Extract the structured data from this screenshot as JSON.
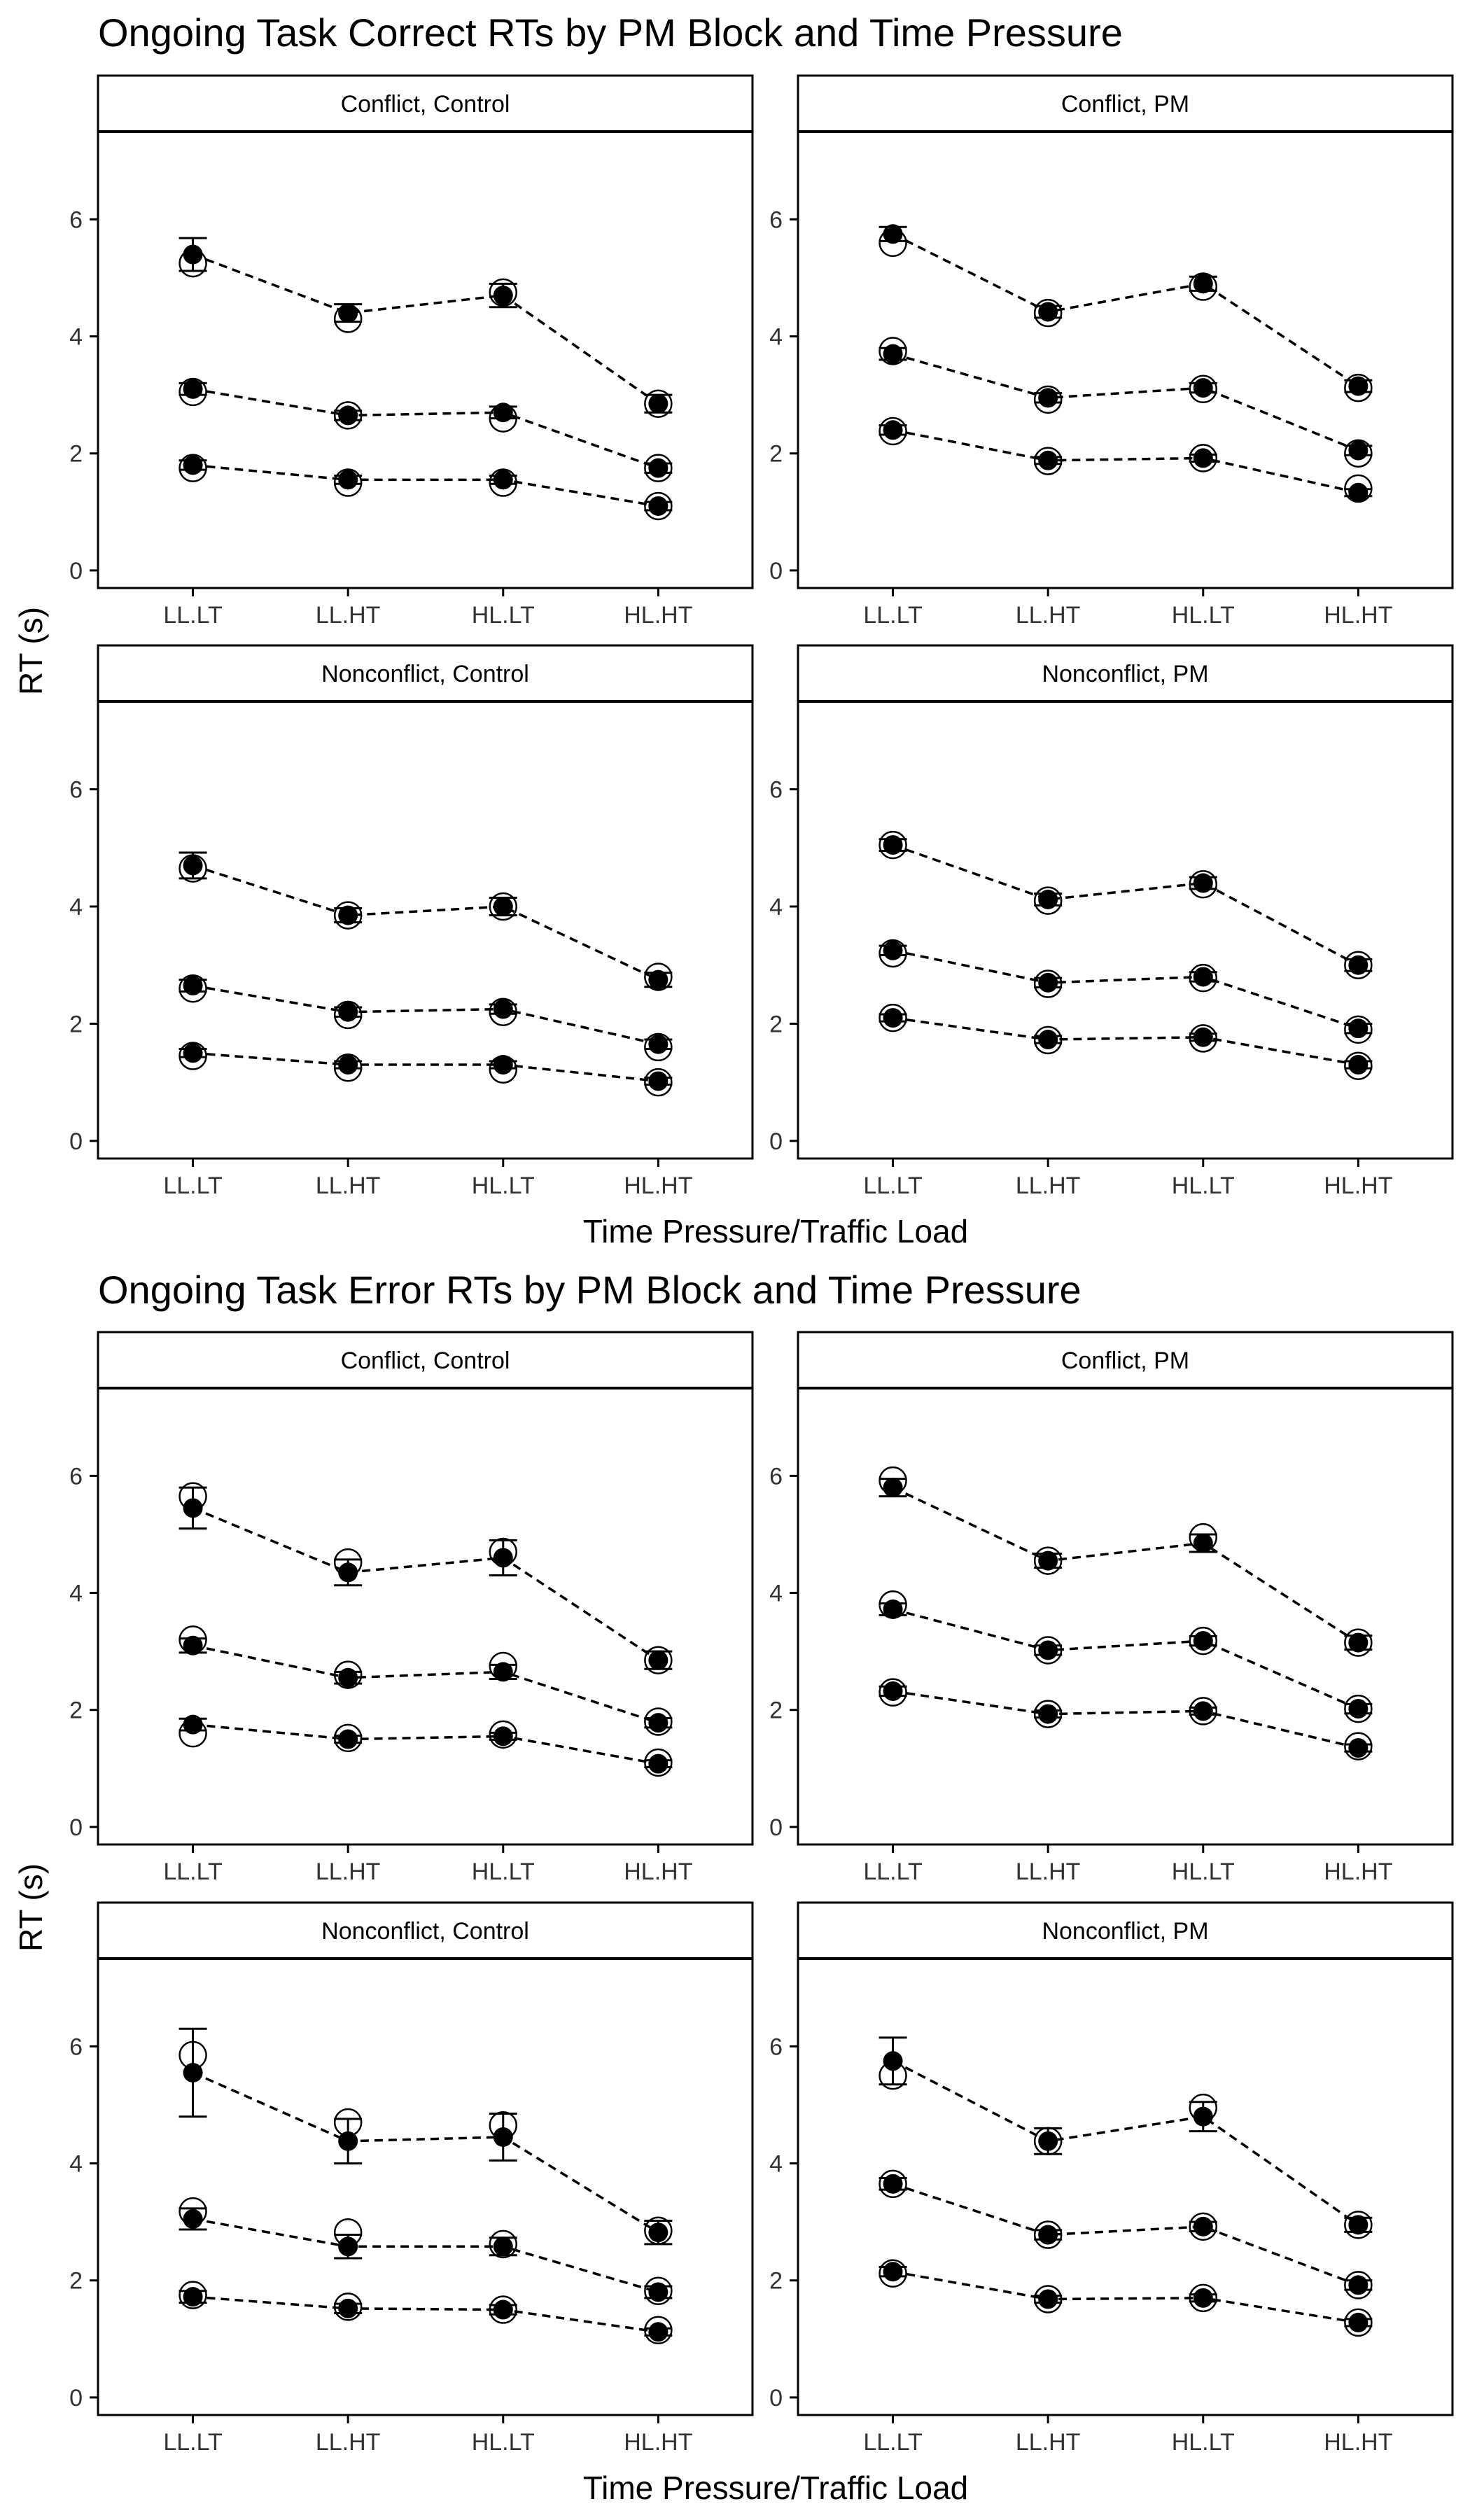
{
  "figures": [
    {
      "title": "Ongoing Task Correct RTs by PM Block and Time Pressure",
      "ylabel": "RT (s)",
      "xlabel": "Time Pressure/Traffic Load"
    },
    {
      "title": "Ongoing Task Error RTs by PM Block and Time Pressure",
      "ylabel": "RT (s)",
      "xlabel": "Time Pressure/Traffic Load"
    }
  ],
  "chart_data": [
    {
      "type": "scatter",
      "title": "Ongoing Task Correct RTs by PM Block and Time Pressure",
      "xlabel": "Time Pressure/Traffic Load",
      "ylabel": "RT (s)",
      "categories": [
        "LL.LT",
        "LL.HT",
        "HL.LT",
        "HL.HT"
      ],
      "ylim": [
        -0.3,
        7.5
      ],
      "yticks": [
        0,
        2,
        4,
        6
      ],
      "grid": false,
      "panels": [
        {
          "strip": "Conflict, Control",
          "series": [
            {
              "filled": [
                5.4,
                4.4,
                4.7,
                2.85
              ],
              "open": [
                5.25,
                4.3,
                4.75,
                2.85
              ],
              "err": [
                0.28,
                0.15,
                0.2,
                0.15
              ]
            },
            {
              "filled": [
                3.1,
                2.65,
                2.7,
                1.75
              ],
              "open": [
                3.05,
                2.65,
                2.6,
                1.75
              ],
              "err": [
                0.1,
                0.08,
                0.1,
                0.08
              ]
            },
            {
              "filled": [
                1.8,
                1.55,
                1.55,
                1.1
              ],
              "open": [
                1.75,
                1.5,
                1.5,
                1.1
              ],
              "err": [
                0.08,
                0.07,
                0.07,
                0.07
              ]
            }
          ]
        },
        {
          "strip": "Conflict, PM",
          "series": [
            {
              "filled": [
                5.75,
                4.42,
                4.9,
                3.15
              ],
              "open": [
                5.6,
                4.4,
                4.85,
                3.12
              ],
              "err": [
                0.12,
                0.1,
                0.12,
                0.1
              ]
            },
            {
              "filled": [
                3.7,
                2.95,
                3.12,
                2.05
              ],
              "open": [
                3.75,
                2.92,
                3.1,
                2.0
              ],
              "err": [
                0.1,
                0.08,
                0.08,
                0.08
              ]
            },
            {
              "filled": [
                2.4,
                1.88,
                1.92,
                1.33
              ],
              "open": [
                2.38,
                1.87,
                1.92,
                1.4
              ],
              "err": [
                0.08,
                0.06,
                0.06,
                0.06
              ]
            }
          ]
        },
        {
          "strip": "Nonconflict, Control",
          "series": [
            {
              "filled": [
                4.7,
                3.85,
                4.0,
                2.75
              ],
              "open": [
                4.65,
                3.85,
                4.0,
                2.8
              ],
              "err": [
                0.22,
                0.12,
                0.15,
                0.12
              ]
            },
            {
              "filled": [
                2.65,
                2.2,
                2.25,
                1.65
              ],
              "open": [
                2.6,
                2.15,
                2.2,
                1.6
              ],
              "err": [
                0.1,
                0.08,
                0.08,
                0.08
              ]
            },
            {
              "filled": [
                1.5,
                1.3,
                1.3,
                1.02
              ],
              "open": [
                1.45,
                1.25,
                1.22,
                1.0
              ],
              "err": [
                0.07,
                0.06,
                0.06,
                0.06
              ]
            }
          ]
        },
        {
          "strip": "Nonconflict, PM",
          "series": [
            {
              "filled": [
                5.05,
                4.12,
                4.4,
                3.0
              ],
              "open": [
                5.05,
                4.1,
                4.38,
                3.0
              ],
              "err": [
                0.1,
                0.1,
                0.1,
                0.1
              ]
            },
            {
              "filled": [
                3.25,
                2.7,
                2.8,
                1.92
              ],
              "open": [
                3.2,
                2.68,
                2.78,
                1.9
              ],
              "err": [
                0.08,
                0.08,
                0.08,
                0.08
              ]
            },
            {
              "filled": [
                2.1,
                1.73,
                1.77,
                1.3
              ],
              "open": [
                2.1,
                1.72,
                1.75,
                1.28
              ],
              "err": [
                0.06,
                0.06,
                0.06,
                0.06
              ]
            }
          ]
        }
      ]
    },
    {
      "type": "scatter",
      "title": "Ongoing Task Error RTs by PM Block and Time Pressure",
      "xlabel": "Time Pressure/Traffic Load",
      "ylabel": "RT (s)",
      "categories": [
        "LL.LT",
        "LL.HT",
        "HL.LT",
        "HL.HT"
      ],
      "ylim": [
        -0.3,
        7.5
      ],
      "yticks": [
        0,
        2,
        4,
        6
      ],
      "grid": false,
      "panels": [
        {
          "strip": "Conflict, Control",
          "series": [
            {
              "filled": [
                5.45,
                4.35,
                4.6,
                2.85
              ],
              "open": [
                5.65,
                4.52,
                4.7,
                2.85
              ],
              "err": [
                0.35,
                0.22,
                0.3,
                0.15
              ]
            },
            {
              "filled": [
                3.1,
                2.55,
                2.65,
                1.78
              ],
              "open": [
                3.2,
                2.6,
                2.75,
                1.8
              ],
              "err": [
                0.12,
                0.1,
                0.12,
                0.08
              ]
            },
            {
              "filled": [
                1.75,
                1.5,
                1.55,
                1.08
              ],
              "open": [
                1.6,
                1.52,
                1.58,
                1.1
              ],
              "err": [
                0.1,
                0.06,
                0.06,
                0.06
              ]
            }
          ]
        },
        {
          "strip": "Conflict, PM",
          "series": [
            {
              "filled": [
                5.8,
                4.55,
                4.85,
                3.15
              ],
              "open": [
                5.92,
                4.55,
                4.95,
                3.15
              ],
              "err": [
                0.15,
                0.12,
                0.15,
                0.12
              ]
            },
            {
              "filled": [
                3.72,
                3.02,
                3.18,
                2.02
              ],
              "open": [
                3.8,
                3.02,
                3.18,
                2.02
              ],
              "err": [
                0.1,
                0.08,
                0.08,
                0.08
              ]
            },
            {
              "filled": [
                2.32,
                1.93,
                1.98,
                1.35
              ],
              "open": [
                2.3,
                1.93,
                1.98,
                1.38
              ],
              "err": [
                0.08,
                0.06,
                0.06,
                0.06
              ]
            }
          ]
        },
        {
          "strip": "Nonconflict, Control",
          "series": [
            {
              "filled": [
                5.55,
                4.38,
                4.45,
                2.82
              ],
              "open": [
                5.85,
                4.7,
                4.65,
                2.85
              ],
              "err": [
                0.75,
                0.38,
                0.4,
                0.2
              ]
            },
            {
              "filled": [
                3.05,
                2.58,
                2.58,
                1.8
              ],
              "open": [
                3.18,
                2.82,
                2.62,
                1.82
              ],
              "err": [
                0.18,
                0.2,
                0.15,
                0.1
              ]
            },
            {
              "filled": [
                1.72,
                1.52,
                1.5,
                1.12
              ],
              "open": [
                1.75,
                1.55,
                1.5,
                1.15
              ],
              "err": [
                0.1,
                0.08,
                0.08,
                0.06
              ]
            }
          ]
        },
        {
          "strip": "Nonconflict, PM",
          "series": [
            {
              "filled": [
                5.75,
                4.38,
                4.8,
                2.95
              ],
              "open": [
                5.5,
                4.38,
                4.95,
                2.95
              ],
              "err": [
                0.4,
                0.22,
                0.25,
                0.12
              ]
            },
            {
              "filled": [
                3.65,
                2.78,
                2.92,
                1.92
              ],
              "open": [
                3.65,
                2.78,
                2.92,
                1.92
              ],
              "err": [
                0.1,
                0.08,
                0.08,
                0.08
              ]
            },
            {
              "filled": [
                2.15,
                1.68,
                1.7,
                1.28
              ],
              "open": [
                2.12,
                1.68,
                1.7,
                1.28
              ],
              "err": [
                0.08,
                0.06,
                0.06,
                0.06
              ]
            }
          ]
        }
      ]
    }
  ]
}
